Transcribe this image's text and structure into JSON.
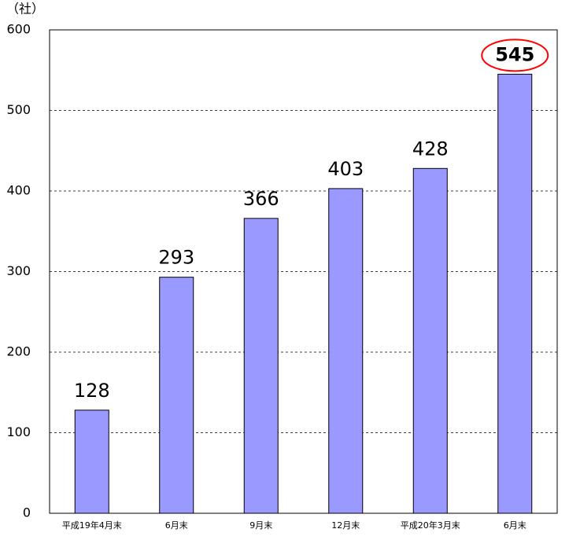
{
  "chart_data": {
    "type": "bar",
    "y_unit": "（社）",
    "categories": [
      "平成19年4月末",
      "6月末",
      "9月末",
      "12月末",
      "平成20年3月末",
      "6月末"
    ],
    "values": [
      128,
      293,
      366,
      403,
      428,
      545
    ],
    "color": "#9999ff",
    "ylim": [
      0,
      600
    ],
    "yticks": [
      0,
      100,
      200,
      300,
      400,
      500,
      600
    ],
    "grid": true,
    "highlight": {
      "index": 5,
      "color": "#ff0000"
    }
  }
}
